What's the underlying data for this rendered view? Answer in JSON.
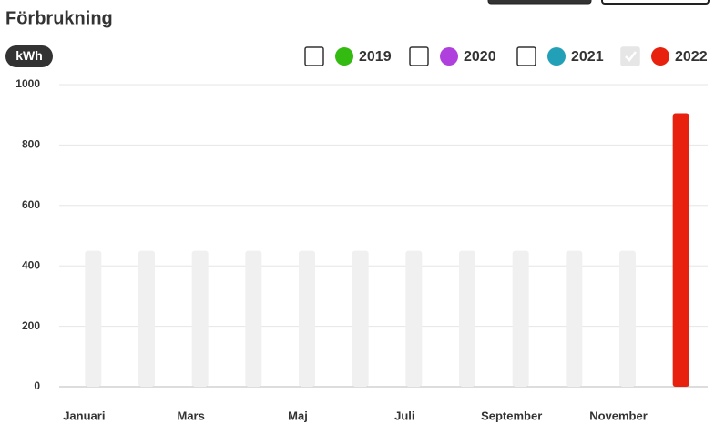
{
  "chart_data": {
    "type": "bar",
    "title": "Förbrukning",
    "y_label": "kWh",
    "categories": [
      "Januari",
      null,
      "Mars",
      null,
      "Maj",
      null,
      "Juli",
      null,
      "September",
      null,
      "November",
      null
    ],
    "series": [
      {
        "name": "2019",
        "color": "#33bb11",
        "checked": false,
        "values": [
          null,
          null,
          null,
          null,
          null,
          null,
          null,
          null,
          null,
          null,
          null,
          null
        ]
      },
      {
        "name": "2020",
        "color": "#b040dd",
        "checked": false,
        "values": [
          null,
          null,
          null,
          null,
          null,
          null,
          null,
          null,
          null,
          null,
          null,
          null
        ]
      },
      {
        "name": "2021",
        "color": "#22a0b8",
        "checked": false,
        "values": [
          null,
          null,
          null,
          null,
          null,
          null,
          null,
          null,
          null,
          null,
          null,
          null
        ]
      },
      {
        "name": "2022",
        "color": "#e8210e",
        "checked": true,
        "values": [
          null,
          null,
          null,
          null,
          null,
          null,
          null,
          null,
          null,
          null,
          null,
          905
        ]
      }
    ],
    "placeholder": {
      "color": "#f0f0f0",
      "values": [
        450,
        450,
        450,
        450,
        450,
        450,
        450,
        450,
        450,
        450,
        450,
        null
      ]
    },
    "ylim": [
      0,
      1000
    ],
    "yticks": [
      0,
      200,
      400,
      600,
      800,
      1000
    ],
    "grid": true
  }
}
